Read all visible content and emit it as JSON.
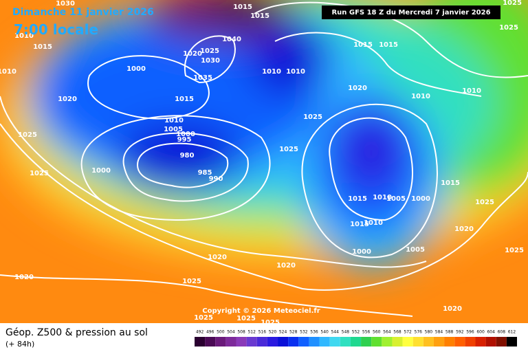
{
  "header": {
    "date": "Dimanche 11 janvier 2026",
    "time": "7:00 locale",
    "run": "Run GFS 18 Z du Mercredi 7 janvier 2026",
    "copyright": "Copyright © 2026 Meteociel.fr"
  },
  "footer": {
    "title": "Géop. Z500 & pression au sol",
    "lead": "(+ 84h)"
  },
  "isobar_labels": [
    "1030",
    "1015",
    "1015",
    "1025",
    "1025",
    "1010",
    "1015",
    "1040",
    "1025",
    "1020",
    "1030",
    "1015",
    "1015",
    "1000",
    "1010",
    "1010",
    "1010",
    "1035",
    "1020",
    "1010",
    "1010",
    "1020",
    "1015",
    "1025",
    "1010",
    "1005",
    "1000",
    "995",
    "1025",
    "1025",
    "980",
    "1000",
    "985",
    "990",
    "1025",
    "1015",
    "1015",
    "1010",
    "1005",
    "1000",
    "1025",
    "1015",
    "1010",
    "1020",
    "1005",
    "1025",
    "1000",
    "1020",
    "1020",
    "1020",
    "1025",
    "1020",
    "1025",
    "1025",
    "1025"
  ],
  "colorbar": {
    "ticks": [
      492,
      496,
      500,
      504,
      508,
      512,
      516,
      520,
      524,
      528,
      532,
      536,
      540,
      544,
      548,
      552,
      556,
      560,
      564,
      568,
      572,
      576,
      580,
      584,
      588,
      592,
      596,
      600,
      604,
      608,
      612
    ],
    "colors": [
      "#2a0030",
      "#4b0a55",
      "#6a1a7a",
      "#7d2a9a",
      "#8a3ab8",
      "#6a3ad0",
      "#4a2ad8",
      "#2a1ae0",
      "#0a10d8",
      "#0a30f0",
      "#1060ff",
      "#2090ff",
      "#30b8ff",
      "#40d8f0",
      "#30e0c0",
      "#20d890",
      "#30d050",
      "#60e030",
      "#a0f030",
      "#d8f030",
      "#ffff40",
      "#ffe030",
      "#ffc020",
      "#ffa010",
      "#ff8000",
      "#ff6000",
      "#f04000",
      "#d82000",
      "#b01000",
      "#801000",
      "#000000"
    ]
  }
}
